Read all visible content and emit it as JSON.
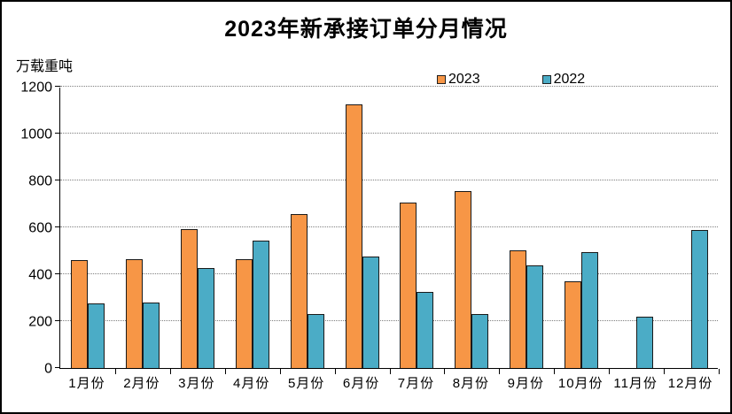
{
  "title": "2023年新承接订单分月情况",
  "colors": {
    "series_2023": "#F79646",
    "series_2022": "#4BACC6",
    "bar_border": "#1a1a1a",
    "grid": "#7f7f7f",
    "axis": "#000000",
    "background": "#FFFFFF",
    "text": "#000000"
  },
  "chart_data": {
    "type": "bar",
    "title": "2023年新承接订单分月情况",
    "xlabel": "",
    "ylabel": "万载重吨",
    "categories": [
      "1月份",
      "2月份",
      "3月份",
      "4月份",
      "5月份",
      "6月份",
      "7月份",
      "8月份",
      "9月份",
      "10月份",
      "11月份",
      "12月份"
    ],
    "series": [
      {
        "name": "2023",
        "color": "#F79646",
        "values": [
          460,
          464,
          591,
          466,
          657,
          1123,
          705,
          754,
          503,
          371,
          null,
          null
        ]
      },
      {
        "name": "2022",
        "color": "#4BACC6",
        "values": [
          277,
          281,
          428,
          543,
          230,
          474,
          325,
          231,
          437,
          494,
          218,
          589
        ]
      }
    ],
    "ylim": [
      0,
      1200
    ],
    "yticks": [
      0,
      200,
      400,
      600,
      800,
      1000,
      1200
    ],
    "grid": "horizontal-dotted",
    "legend_position": "top-center"
  }
}
